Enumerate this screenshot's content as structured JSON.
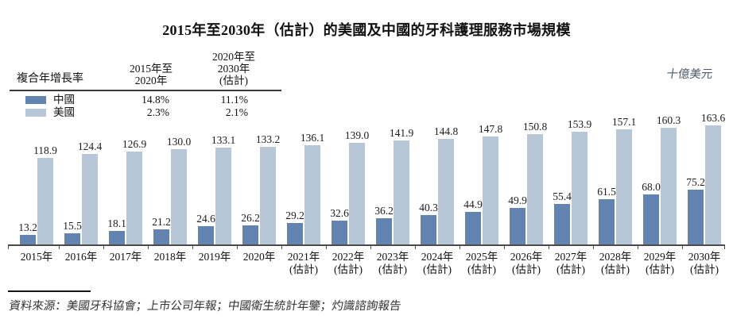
{
  "title": "2015年至2030年（估計）的美國及中國的牙科護理服務市場規模",
  "unit_label": "十億美元",
  "legend": {
    "cagr_label": "複合年增長率",
    "period1_header": "2015年至\n2020年",
    "period2_header": "2020年至\n2030年\n(估計)",
    "rows": [
      {
        "name": "中國",
        "swatch_color": "#6383b0",
        "period1": "14.8%",
        "period2": "11.1%"
      },
      {
        "name": "美國",
        "swatch_color": "#b8c7d8",
        "period1": "2.3%",
        "period2": "2.1%"
      }
    ]
  },
  "chart_data": {
    "type": "bar",
    "title": "2015年至2030年（估計）的美國及中國的牙科護理服務市場規模",
    "unit": "十億美元",
    "legend_position": "top-left",
    "y_axis_visible": false,
    "grid": false,
    "ylim": [
      0,
      170
    ],
    "value_label_decimals": 1,
    "categories": [
      {
        "label": "2015年",
        "sublabel": ""
      },
      {
        "label": "2016年",
        "sublabel": ""
      },
      {
        "label": "2017年",
        "sublabel": ""
      },
      {
        "label": "2018年",
        "sublabel": ""
      },
      {
        "label": "2019年",
        "sublabel": ""
      },
      {
        "label": "2020年",
        "sublabel": ""
      },
      {
        "label": "2021年",
        "sublabel": "(估計)"
      },
      {
        "label": "2022年",
        "sublabel": "(估計)"
      },
      {
        "label": "2023年",
        "sublabel": "(估計)"
      },
      {
        "label": "2024年",
        "sublabel": "(估計)"
      },
      {
        "label": "2025年",
        "sublabel": "(估計)"
      },
      {
        "label": "2026年",
        "sublabel": "(估計)"
      },
      {
        "label": "2027年",
        "sublabel": "(估計)"
      },
      {
        "label": "2028年",
        "sublabel": "(估計)"
      },
      {
        "label": "2029年",
        "sublabel": "(估計)"
      },
      {
        "label": "2030年",
        "sublabel": "(估計)"
      }
    ],
    "series": [
      {
        "name": "中國",
        "key": "china",
        "color": "#6383b0",
        "values": [
          13.2,
          15.5,
          18.1,
          21.2,
          24.6,
          26.2,
          29.2,
          32.6,
          36.2,
          40.3,
          44.9,
          49.9,
          55.4,
          61.5,
          68.0,
          75.2
        ]
      },
      {
        "name": "美國",
        "key": "usa",
        "color": "#b8c7d8",
        "values": [
          118.9,
          124.4,
          126.9,
          130.0,
          133.1,
          133.2,
          136.1,
          139.0,
          141.9,
          144.8,
          147.8,
          150.8,
          153.9,
          157.1,
          160.3,
          163.6
        ]
      }
    ]
  },
  "source": "資料來源：美國牙科協會；上市公司年報；中國衛生統計年鑒；灼識諮詢報告"
}
